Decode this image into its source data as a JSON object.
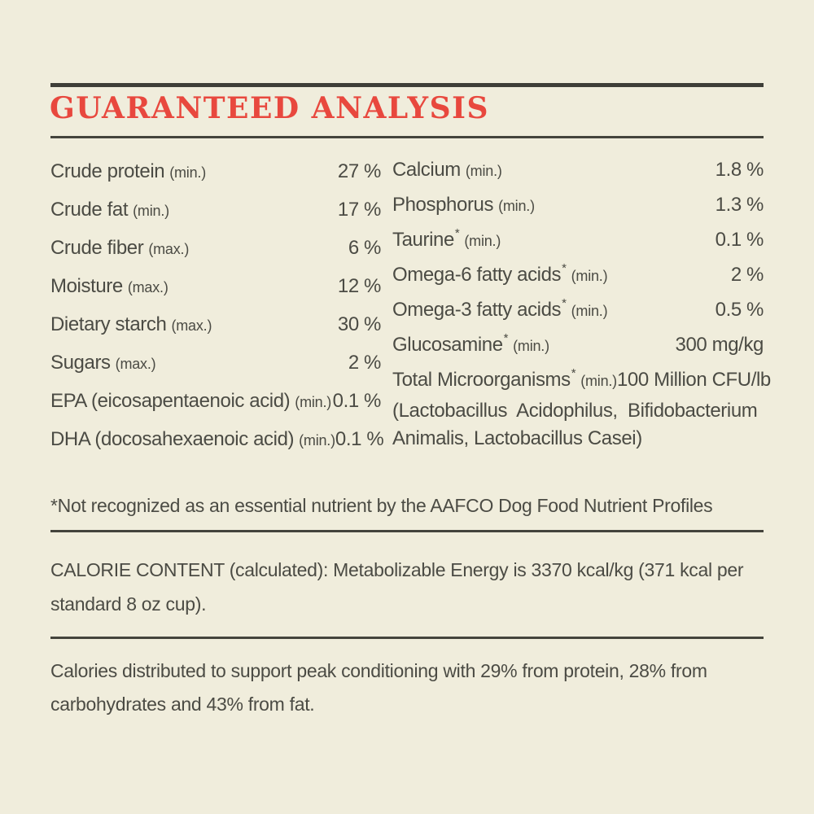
{
  "heading": "GUARANTEED ANALYSIS",
  "colors": {
    "background": "#F0EDDC",
    "heading_red": "#E8483E",
    "text_gray": "#4B4B44",
    "rule_dark": "#3E3E38"
  },
  "analysis": {
    "left": [
      {
        "label": "Crude protein",
        "qualifier": "(min.)",
        "value": "27 %"
      },
      {
        "label": "Crude fat",
        "qualifier": "(min.)",
        "value": "17 %"
      },
      {
        "label": "Crude fiber",
        "qualifier": "(max.)",
        "value": "6 %"
      },
      {
        "label": "Moisture",
        "qualifier": "(max.)",
        "value": "12 %"
      },
      {
        "label": "Dietary starch",
        "qualifier": "(max.)",
        "value": "30 %"
      },
      {
        "label": "Sugars",
        "qualifier": "(max.)",
        "value": "2 %"
      },
      {
        "label": "EPA (eicosapentaenoic acid)",
        "qualifier": "(min.)",
        "value": "0.1 %"
      },
      {
        "label": "DHA (docosahexaenoic acid)",
        "qualifier": "(min.)",
        "value": "0.1 %"
      }
    ],
    "right": [
      {
        "label": "Calcium",
        "qualifier": "(min.)",
        "value": "1.8 %"
      },
      {
        "label": "Phosphorus",
        "qualifier": "(min.)",
        "value": "1.3 %"
      },
      {
        "label": "Taurine",
        "sup": "*",
        "qualifier": "(min.)",
        "value": "0.1 %"
      },
      {
        "label": "Omega-6 fatty acids",
        "sup": "*",
        "qualifier": "(min.)",
        "value": "2 %"
      },
      {
        "label": "Omega-3 fatty acids",
        "sup": "*",
        "qualifier": "(min.)",
        "value": "0.5 %"
      },
      {
        "label": "Glucosamine",
        "sup": "*",
        "qualifier": "(min.)",
        "value": "300 mg/kg"
      },
      {
        "label": "Total Microorganisms",
        "sup": "*",
        "qualifier": "(min.)",
        "value": "100 Million CFU/lb",
        "wrap_lines": [
          "(Lactobacillus Acidophilus, Bifidobacterium",
          "Animalis, Lactobacillus Casei)"
        ]
      }
    ]
  },
  "footnote": {
    "lines": [
      "*Not recognized as an essential nutrient by the AAFCO Dog Food Nutrient Profiles"
    ]
  },
  "calorie_content": {
    "lines": [
      "CALORIE CONTENT (calculated): Metabolizable Energy is 3370 kcal/kg (371 kcal per",
      "standard 8 oz cup)."
    ]
  },
  "calories_distribution": {
    "lines": [
      "Calories distributed to support peak conditioning with 29% from protein, 28% from",
      "carbohydrates and 43% from fat."
    ]
  }
}
